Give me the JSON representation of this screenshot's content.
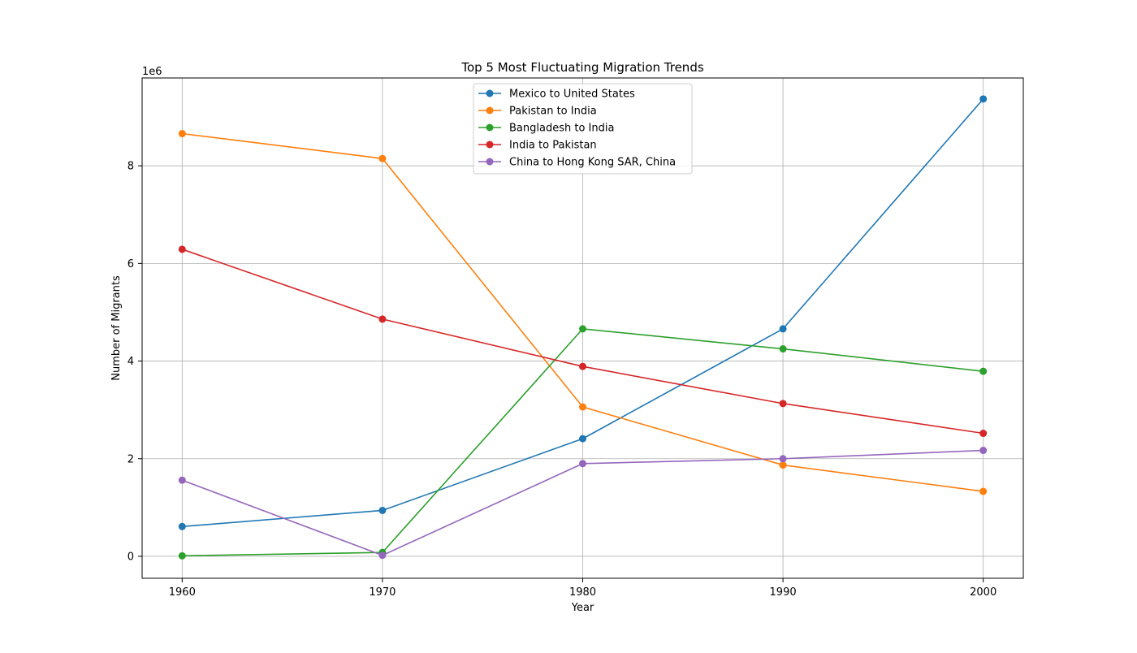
{
  "chart_data": {
    "type": "line",
    "title": "Top 5 Most Fluctuating Migration Trends",
    "xlabel": "Year",
    "ylabel": "Number of Migrants",
    "y_offset_label": "1e6",
    "x": [
      1960,
      1970,
      1980,
      1990,
      2000
    ],
    "x_ticks": [
      1960,
      1970,
      1980,
      1990,
      2000
    ],
    "y_ticks": [
      0,
      2,
      4,
      6,
      8
    ],
    "y_tick_labels": [
      "0",
      "2",
      "4",
      "6",
      "8"
    ],
    "xlim": [
      1958,
      2002
    ],
    "ylim": [
      -450000,
      9800000
    ],
    "grid": true,
    "legend_position": "upper center",
    "series": [
      {
        "name": "Mexico to United States",
        "color": "#1f77b4",
        "values": [
          610000,
          940000,
          2410000,
          4660000,
          9370000
        ]
      },
      {
        "name": "Pakistan to India",
        "color": "#ff7f0e",
        "values": [
          8660000,
          8150000,
          3060000,
          1870000,
          1330000
        ]
      },
      {
        "name": "Bangladesh to India",
        "color": "#2ca02c",
        "values": [
          10000,
          80000,
          4660000,
          4250000,
          3790000
        ]
      },
      {
        "name": "India to Pakistan",
        "color": "#d62728",
        "values": [
          6290000,
          4860000,
          3890000,
          3130000,
          2520000
        ]
      },
      {
        "name": "China to Hong Kong SAR, China",
        "color": "#9467bd",
        "values": [
          1560000,
          20000,
          1900000,
          2000000,
          2170000
        ]
      }
    ]
  }
}
